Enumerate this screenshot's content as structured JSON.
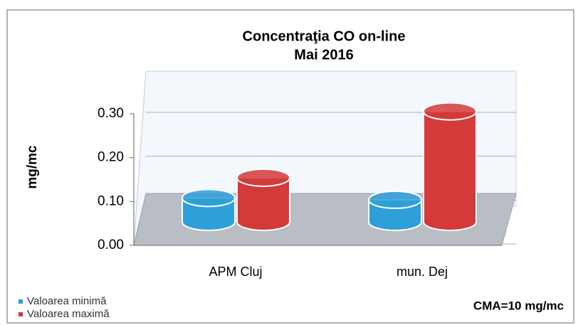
{
  "chart_data": {
    "type": "bar3d",
    "title": "Concentraţia CO on-line",
    "subtitle": "Mai 2016",
    "y_label": "mg/mc",
    "annotation": "CMA=10 mg/mc",
    "categories": [
      "APM Cluj",
      "mun. Dej"
    ],
    "series": [
      {
        "name": "Valoarea minimă",
        "color": "#2e9fd8",
        "values": [
          0.065,
          0.06
        ]
      },
      {
        "name": "Valoarea maximă",
        "color": "#d43a3a",
        "values": [
          0.12,
          0.3
        ]
      }
    ],
    "ylim": [
      0,
      0.3
    ],
    "yticks": [
      {
        "value": 0,
        "label": "0.00"
      },
      {
        "value": 0.1,
        "label": "0.10"
      },
      {
        "value": 0.2,
        "label": "0.20"
      },
      {
        "value": 0.3,
        "label": "0.30"
      }
    ],
    "grid": true
  }
}
